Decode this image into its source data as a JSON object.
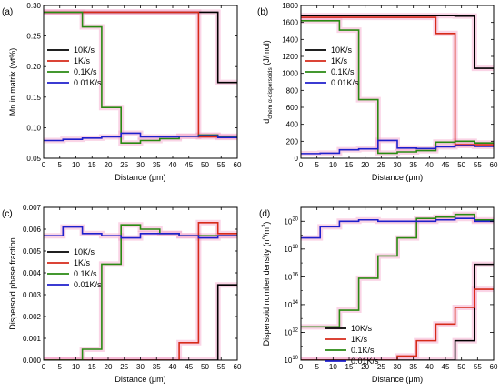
{
  "colors": {
    "10K/s": "#000000",
    "1K/s": "#d62a1a",
    "0.1K/s": "#2a8a12",
    "0.01K/s": "#1f1fcc",
    "highlight": "#f5a0c8"
  },
  "chart_data": [
    {
      "type": "line",
      "step": true,
      "panel": "(a)",
      "xlabel": "Distance (μm)",
      "ylabel": "Mn in matrix (wt%)",
      "xlim": [
        0,
        60
      ],
      "ylim": [
        0.05,
        0.3
      ],
      "xticks": [
        "0",
        "5",
        "10",
        "15",
        "20",
        "25",
        "30",
        "35",
        "40",
        "45",
        "50",
        "55",
        "60"
      ],
      "yticks": [
        "0.05",
        "0.10",
        "0.15",
        "0.20",
        "0.25",
        "0.30"
      ],
      "ytick_values": [
        0.05,
        0.1,
        0.15,
        0.2,
        0.25,
        0.3
      ],
      "legend_position": "middle-left",
      "series": [
        {
          "name": "10K/s",
          "x": [
            0,
            6,
            12,
            18,
            24,
            30,
            36,
            42,
            48,
            54,
            60
          ],
          "y": [
            0.289,
            0.289,
            0.289,
            0.289,
            0.289,
            0.289,
            0.289,
            0.289,
            0.289,
            0.174,
            0.174
          ]
        },
        {
          "name": "1K/s",
          "x": [
            0,
            6,
            12,
            18,
            24,
            30,
            36,
            42,
            48,
            54,
            60
          ],
          "y": [
            0.289,
            0.289,
            0.289,
            0.289,
            0.289,
            0.289,
            0.289,
            0.289,
            0.085,
            0.085,
            0.085
          ]
        },
        {
          "name": "0.1K/s",
          "x": [
            0,
            6,
            12,
            18,
            24,
            30,
            36,
            42,
            48,
            54,
            60
          ],
          "y": [
            0.289,
            0.289,
            0.265,
            0.133,
            0.075,
            0.079,
            0.082,
            0.086,
            0.088,
            0.086,
            0.086
          ]
        },
        {
          "name": "0.01K/s",
          "x": [
            0,
            6,
            12,
            18,
            24,
            30,
            36,
            42,
            48,
            54,
            60
          ],
          "y": [
            0.079,
            0.081,
            0.083,
            0.085,
            0.091,
            0.085,
            0.085,
            0.086,
            0.087,
            0.084,
            0.084
          ]
        }
      ]
    },
    {
      "type": "line",
      "step": true,
      "panel": "(b)",
      "xlabel": "Distance (μm)",
      "ylabel": "d",
      "ylabel_sub": "chem α-dispersoids",
      "ylabel_suffix": " (J/mol)",
      "xlim": [
        0,
        60
      ],
      "ylim": [
        0,
        1800
      ],
      "xticks": [
        "0",
        "5",
        "10",
        "15",
        "20",
        "25",
        "30",
        "35",
        "40",
        "45",
        "50",
        "55",
        "60"
      ],
      "yticks": [
        "0",
        "200",
        "400",
        "600",
        "800",
        "1000",
        "1200",
        "1400",
        "1600",
        "1800"
      ],
      "ytick_values": [
        0,
        200,
        400,
        600,
        800,
        1000,
        1200,
        1400,
        1600,
        1800
      ],
      "legend_position": "middle-left",
      "series": [
        {
          "name": "10K/s",
          "x": [
            0,
            6,
            12,
            18,
            24,
            30,
            36,
            42,
            48,
            54,
            60
          ],
          "y": [
            1680,
            1680,
            1680,
            1680,
            1680,
            1680,
            1680,
            1680,
            1675,
            1060,
            1060
          ]
        },
        {
          "name": "1K/s",
          "x": [
            0,
            6,
            12,
            18,
            24,
            30,
            36,
            42,
            48,
            54,
            60
          ],
          "y": [
            1660,
            1660,
            1660,
            1660,
            1660,
            1660,
            1660,
            1470,
            160,
            160,
            160
          ]
        },
        {
          "name": "0.1K/s",
          "x": [
            0,
            6,
            12,
            18,
            24,
            30,
            36,
            42,
            48,
            54,
            60
          ],
          "y": [
            1620,
            1620,
            1510,
            690,
            60,
            75,
            90,
            190,
            200,
            180,
            180
          ]
        },
        {
          "name": "0.01K/s",
          "x": [
            0,
            6,
            12,
            18,
            24,
            30,
            36,
            42,
            48,
            54,
            60
          ],
          "y": [
            55,
            60,
            100,
            110,
            210,
            120,
            115,
            135,
            150,
            140,
            140
          ]
        }
      ]
    },
    {
      "type": "line",
      "step": true,
      "panel": "(c)",
      "xlabel": "Distance (μm)",
      "ylabel": "Dispersoid phase fraction",
      "xlim": [
        0,
        60
      ],
      "ylim": [
        0,
        0.007
      ],
      "xticks": [
        "0",
        "5",
        "10",
        "15",
        "20",
        "25",
        "30",
        "35",
        "40",
        "45",
        "50",
        "55",
        "60"
      ],
      "yticks": [
        "0.000",
        "0.001",
        "0.002",
        "0.003",
        "0.004",
        "0.005",
        "0.006",
        "0.007"
      ],
      "ytick_values": [
        0,
        0.001,
        0.002,
        0.003,
        0.004,
        0.005,
        0.006,
        0.007
      ],
      "legend_position": "middle-left",
      "series": [
        {
          "name": "10K/s",
          "x": [
            0,
            6,
            12,
            18,
            24,
            30,
            36,
            42,
            48,
            54,
            60
          ],
          "y": [
            0,
            0,
            0,
            0,
            0,
            0,
            0,
            0,
            0,
            0.00345,
            0.00345
          ]
        },
        {
          "name": "1K/s",
          "x": [
            0,
            6,
            12,
            18,
            24,
            30,
            36,
            42,
            48,
            54,
            60
          ],
          "y": [
            0,
            0,
            0,
            0,
            0,
            0,
            0,
            0.0008,
            0.0063,
            0.0058,
            0.0058
          ]
        },
        {
          "name": "0.1K/s",
          "x": [
            0,
            6,
            12,
            18,
            24,
            30,
            36,
            42,
            48,
            54,
            60
          ],
          "y": [
            0,
            0,
            0.0005,
            0.0044,
            0.0062,
            0.006,
            0.0058,
            0.0057,
            0.0057,
            0.0057,
            0.0057
          ]
        },
        {
          "name": "0.01K/s",
          "x": [
            0,
            6,
            12,
            18,
            24,
            30,
            36,
            42,
            48,
            54,
            60
          ],
          "y": [
            0.0057,
            0.0061,
            0.0058,
            0.0057,
            0.0056,
            0.0058,
            0.0058,
            0.0057,
            0.0056,
            0.0057,
            0.0057
          ]
        }
      ]
    },
    {
      "type": "line",
      "step": true,
      "panel": "(d)",
      "xlabel": "Distance (μm)",
      "ylabel": "Dispersoid number density (n",
      "ylabel_sup": "o",
      "ylabel_suffix": "/m",
      "ylabel_sup2": "3",
      "ylabel_end": ")",
      "xlim": [
        0,
        60
      ],
      "ylim_log10": [
        10,
        21
      ],
      "log_scale_y": true,
      "xticks": [
        "0",
        "5",
        "10",
        "15",
        "20",
        "25",
        "30",
        "35",
        "40",
        "45",
        "50",
        "55",
        "60"
      ],
      "yticks_exponents": [
        "10",
        "12",
        "14",
        "16",
        "18",
        "20"
      ],
      "legend_position": "bottom-left",
      "series": [
        {
          "name": "10K/s",
          "x": [
            0,
            6,
            12,
            18,
            24,
            30,
            36,
            42,
            48,
            54,
            60
          ],
          "log10_y": [
            10,
            10,
            10,
            10,
            10,
            10,
            10,
            10,
            11.4,
            16.9,
            16.9
          ]
        },
        {
          "name": "1K/s",
          "x": [
            0,
            6,
            12,
            18,
            24,
            30,
            36,
            42,
            48,
            54,
            60
          ],
          "log10_y": [
            10,
            10,
            10,
            10,
            10,
            10.3,
            11.4,
            12.6,
            13.8,
            15.1,
            20.3
          ]
        },
        {
          "name": "0.1K/s",
          "x": [
            0,
            6,
            12,
            18,
            24,
            30,
            36,
            42,
            48,
            54,
            60
          ],
          "log10_y": [
            12.4,
            12.4,
            13.6,
            15.9,
            17.5,
            18.8,
            20.2,
            20.3,
            20.5,
            20.1,
            20.1
          ]
        },
        {
          "name": "0.01K/s",
          "x": [
            0,
            6,
            12,
            18,
            24,
            30,
            36,
            42,
            48,
            54,
            60
          ],
          "log10_y": [
            18.8,
            19.6,
            20.0,
            20.1,
            20.0,
            20.0,
            20.0,
            20.1,
            20.2,
            20.0,
            20.0
          ]
        }
      ]
    }
  ]
}
